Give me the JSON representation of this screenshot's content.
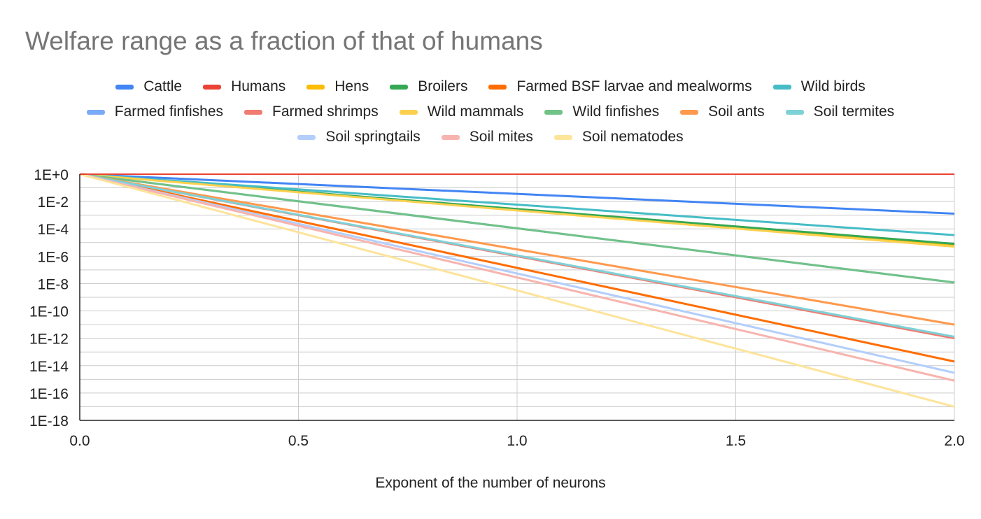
{
  "chart_data": {
    "type": "line",
    "title": "Welfare range as a fraction of that of humans",
    "xlabel": "Exponent of the number of neurons",
    "ylabel": "",
    "yscale": "log",
    "xlim": [
      0,
      2
    ],
    "ylim_exponent": [
      -18,
      0
    ],
    "x_ticks": [
      "0.0",
      "0.5",
      "1.0",
      "1.5",
      "2.0"
    ],
    "x_tick_values": [
      0,
      0.5,
      1.0,
      1.5,
      2.0
    ],
    "y_ticks": [
      "1E+0",
      "1E-2",
      "1E-4",
      "1E-6",
      "1E-8",
      "1E-10",
      "1E-12",
      "1E-14",
      "1E-16",
      "1E-18"
    ],
    "y_tick_exponents": [
      0,
      -2,
      -4,
      -6,
      -8,
      -10,
      -12,
      -14,
      -16,
      -18
    ],
    "grid": true,
    "legend_position": "top",
    "series": [
      {
        "name": "Cattle",
        "color": "#4285f4",
        "x": [
          0,
          2
        ],
        "y": [
          1,
          0.0013
        ]
      },
      {
        "name": "Humans",
        "color": "#ea4335",
        "x": [
          0,
          2
        ],
        "y": [
          1,
          1
        ]
      },
      {
        "name": "Hens",
        "color": "#fbbc04",
        "x": [
          0,
          2
        ],
        "y": [
          1,
          7e-06
        ]
      },
      {
        "name": "Broilers",
        "color": "#34a853",
        "x": [
          0,
          2
        ],
        "y": [
          1,
          8e-06
        ]
      },
      {
        "name": "Farmed BSF larvae and mealworms",
        "color": "#ff6d01",
        "x": [
          0,
          2
        ],
        "y": [
          1,
          2e-14
        ]
      },
      {
        "name": "Wild birds",
        "color": "#46bdc6",
        "x": [
          0,
          2
        ],
        "y": [
          1,
          3.5e-05
        ]
      },
      {
        "name": "Farmed finfishes",
        "color": "#7baaf7",
        "x": [
          0,
          2
        ],
        "y": [
          1,
          1.2e-08
        ]
      },
      {
        "name": "Farmed shrimps",
        "color": "#f07b72",
        "x": [
          0,
          2
        ],
        "y": [
          1,
          1e-12
        ]
      },
      {
        "name": "Wild mammals",
        "color": "#fcd04f",
        "x": [
          0,
          2
        ],
        "y": [
          1,
          5e-06
        ]
      },
      {
        "name": "Wild finfishes",
        "color": "#71c287",
        "x": [
          0,
          2
        ],
        "y": [
          1,
          1.2e-08
        ]
      },
      {
        "name": "Soil ants",
        "color": "#ff994d",
        "x": [
          0,
          2
        ],
        "y": [
          1,
          1e-11
        ]
      },
      {
        "name": "Soil termites",
        "color": "#7ed1d7",
        "x": [
          0,
          2
        ],
        "y": [
          1,
          1.3e-12
        ]
      },
      {
        "name": "Soil springtails",
        "color": "#b3cefb",
        "x": [
          0,
          2
        ],
        "y": [
          1,
          3e-15
        ]
      },
      {
        "name": "Soil mites",
        "color": "#f7b4ae",
        "x": [
          0,
          2
        ],
        "y": [
          1,
          8e-16
        ]
      },
      {
        "name": "Soil nematodes",
        "color": "#fde49b",
        "x": [
          0,
          2
        ],
        "y": [
          1,
          1e-17
        ]
      }
    ]
  },
  "legend_rows": [
    [
      0,
      1,
      2,
      3,
      4,
      5
    ],
    [
      6,
      7,
      8,
      9,
      10,
      11
    ],
    [
      12,
      13,
      14
    ]
  ]
}
